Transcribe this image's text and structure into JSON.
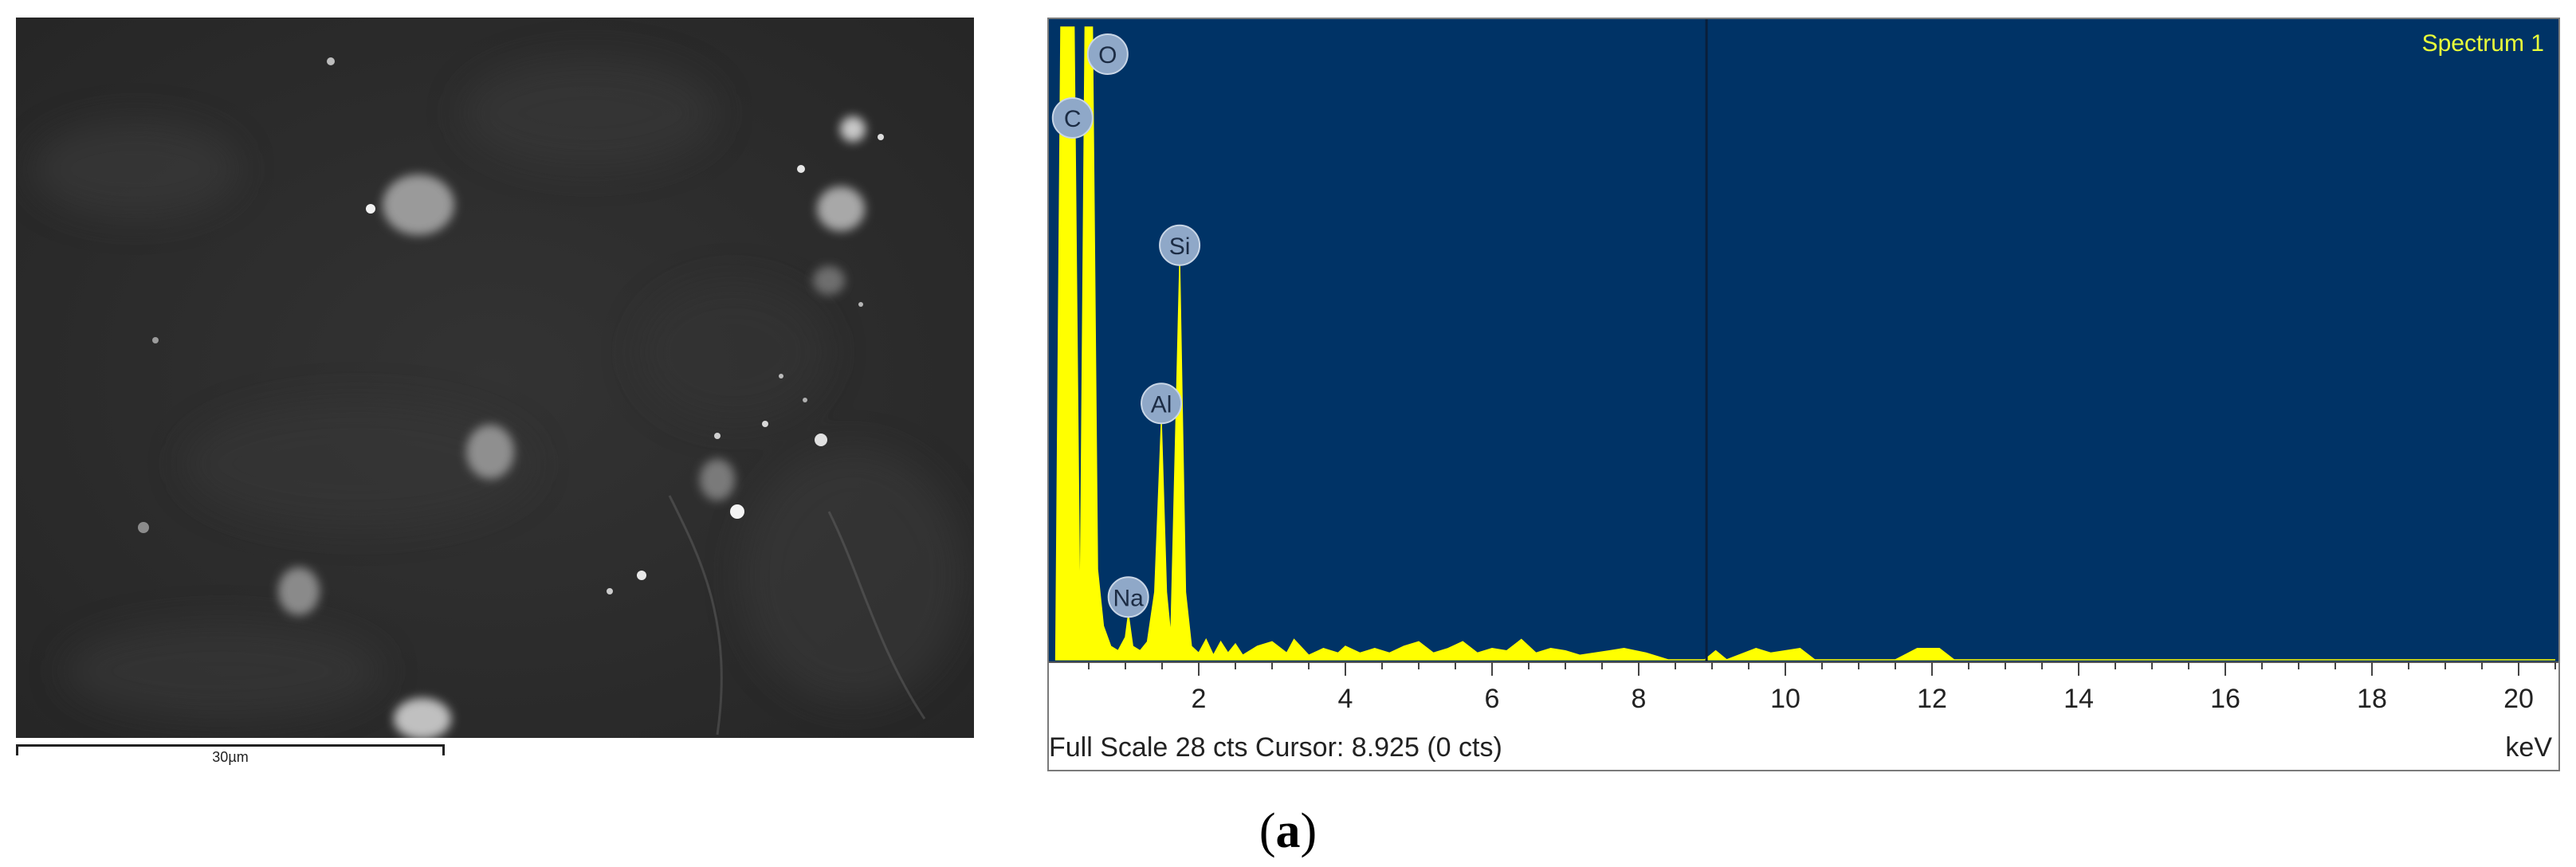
{
  "sem": {
    "scale_label": "30µm"
  },
  "spectrum": {
    "name": "Spectrum 1",
    "footer": "Full Scale 28 cts Cursor: 8.925  (0 cts)",
    "unit": "keV",
    "caption_open": "(",
    "caption_letter": "a",
    "caption_close": ")",
    "colors": {
      "plot_bg": "#003366",
      "trace": "#ffff00",
      "label_bubble": "#8fa8c8",
      "spectrum_name": "#e9ff3a",
      "cursor": "#0a1f3a"
    }
  },
  "chart_data": {
    "type": "area",
    "x_unit": "keV",
    "xlim": [
      0,
      20.5
    ],
    "ylim": [
      0,
      28
    ],
    "x_ticks": [
      2,
      4,
      6,
      8,
      10,
      12,
      14,
      16,
      18,
      20
    ],
    "cursor_keV": 8.925,
    "peaks": [
      {
        "element": "C",
        "keV": 0.28,
        "counts": 28
      },
      {
        "element": "O",
        "keV": 0.52,
        "counts": 28
      },
      {
        "element": "Na",
        "keV": 1.04,
        "counts": 2.0
      },
      {
        "element": "Al",
        "keV": 1.49,
        "counts": 10.5
      },
      {
        "element": "Si",
        "keV": 1.74,
        "counts": 17.5
      }
    ],
    "points": [
      [
        0.05,
        0
      ],
      [
        0.12,
        28
      ],
      [
        0.22,
        28
      ],
      [
        0.3,
        28
      ],
      [
        0.38,
        1
      ],
      [
        0.45,
        28
      ],
      [
        0.55,
        28
      ],
      [
        0.62,
        4
      ],
      [
        0.7,
        1.5
      ],
      [
        0.8,
        0.6
      ],
      [
        0.9,
        0.4
      ],
      [
        1.0,
        1.0
      ],
      [
        1.04,
        2.0
      ],
      [
        1.1,
        0.6
      ],
      [
        1.2,
        0.4
      ],
      [
        1.3,
        0.8
      ],
      [
        1.4,
        3
      ],
      [
        1.49,
        10.5
      ],
      [
        1.56,
        3
      ],
      [
        1.62,
        1
      ],
      [
        1.74,
        17.5
      ],
      [
        1.82,
        3
      ],
      [
        1.9,
        0.6
      ],
      [
        2.0,
        0.3
      ],
      [
        2.1,
        0.9
      ],
      [
        2.2,
        0.2
      ],
      [
        2.3,
        0.8
      ],
      [
        2.4,
        0.3
      ],
      [
        2.5,
        0.7
      ],
      [
        2.6,
        0.2
      ],
      [
        2.8,
        0.6
      ],
      [
        3.0,
        0.8
      ],
      [
        3.2,
        0.3
      ],
      [
        3.3,
        0.9
      ],
      [
        3.5,
        0.2
      ],
      [
        3.7,
        0.5
      ],
      [
        3.9,
        0.3
      ],
      [
        4.0,
        0.6
      ],
      [
        4.2,
        0.3
      ],
      [
        4.4,
        0.5
      ],
      [
        4.6,
        0.3
      ],
      [
        4.8,
        0.6
      ],
      [
        5.0,
        0.8
      ],
      [
        5.2,
        0.3
      ],
      [
        5.4,
        0.5
      ],
      [
        5.6,
        0.8
      ],
      [
        5.8,
        0.3
      ],
      [
        6.0,
        0.5
      ],
      [
        6.2,
        0.4
      ],
      [
        6.4,
        0.9
      ],
      [
        6.6,
        0.3
      ],
      [
        6.8,
        0.5
      ],
      [
        7.0,
        0.4
      ],
      [
        7.2,
        0.2
      ],
      [
        7.6,
        0.4
      ],
      [
        7.8,
        0.5
      ],
      [
        8.1,
        0.3
      ],
      [
        8.4,
        0
      ],
      [
        8.9,
        0
      ],
      [
        9.05,
        0.4
      ],
      [
        9.2,
        0
      ],
      [
        9.6,
        0.5
      ],
      [
        9.8,
        0.3
      ],
      [
        10.2,
        0.5
      ],
      [
        10.4,
        0
      ],
      [
        11.5,
        0
      ],
      [
        11.8,
        0.5
      ],
      [
        12.1,
        0.5
      ],
      [
        12.3,
        0
      ],
      [
        20.5,
        0
      ]
    ]
  }
}
